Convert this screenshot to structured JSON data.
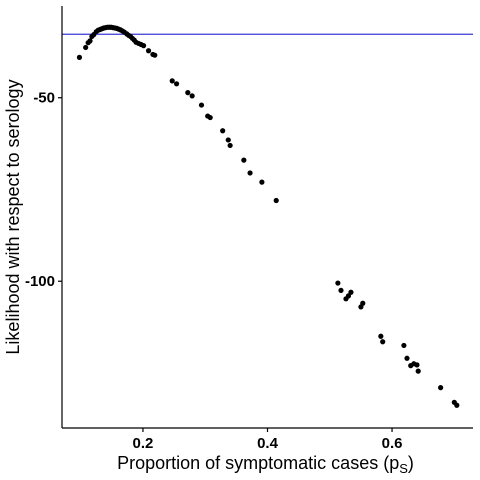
{
  "chart_data": {
    "type": "scatter",
    "xlabel_main": "Proportion of symptomatic cases (p",
    "xlabel_sub": "S",
    "xlabel_close": ")",
    "ylabel": "Likelihood with respect to serology",
    "x_ticks": [
      0.2,
      0.4,
      0.6
    ],
    "x_tick_labels": [
      "0.2",
      "0.4",
      "0.6"
    ],
    "y_ticks": [
      -50,
      -100
    ],
    "y_tick_labels": [
      "-50",
      "-100"
    ],
    "xlim": [
      0.07,
      0.73
    ],
    "ylim": [
      -140,
      -25
    ],
    "grid": false,
    "reference_line": {
      "y": -32.7,
      "color": "#3a3ad6"
    },
    "point_color": "#000000",
    "points": [
      [
        0.098,
        -39.0
      ],
      [
        0.108,
        -36.3
      ],
      [
        0.112,
        -35.0
      ],
      [
        0.115,
        -34.5
      ],
      [
        0.118,
        -33.3
      ],
      [
        0.121,
        -32.8
      ],
      [
        0.125,
        -32.0
      ],
      [
        0.128,
        -31.6
      ],
      [
        0.131,
        -31.4
      ],
      [
        0.134,
        -31.2
      ],
      [
        0.137,
        -31.0
      ],
      [
        0.14,
        -30.9
      ],
      [
        0.143,
        -30.8
      ],
      [
        0.146,
        -30.8
      ],
      [
        0.149,
        -30.8
      ],
      [
        0.152,
        -30.9
      ],
      [
        0.155,
        -31.0
      ],
      [
        0.158,
        -31.1
      ],
      [
        0.161,
        -31.3
      ],
      [
        0.164,
        -31.5
      ],
      [
        0.167,
        -31.8
      ],
      [
        0.17,
        -32.1
      ],
      [
        0.174,
        -32.6
      ],
      [
        0.177,
        -33.0
      ],
      [
        0.18,
        -33.3
      ],
      [
        0.183,
        -33.8
      ],
      [
        0.186,
        -34.3
      ],
      [
        0.189,
        -34.9
      ],
      [
        0.193,
        -35.2
      ],
      [
        0.197,
        -35.5
      ],
      [
        0.201,
        -35.8
      ],
      [
        0.209,
        -37.2
      ],
      [
        0.216,
        -38.2
      ],
      [
        0.219,
        -38.4
      ],
      [
        0.247,
        -45.4
      ],
      [
        0.254,
        -46.2
      ],
      [
        0.272,
        -48.6
      ],
      [
        0.279,
        -49.5
      ],
      [
        0.294,
        -52.0
      ],
      [
        0.304,
        -55.0
      ],
      [
        0.308,
        -55.4
      ],
      [
        0.328,
        -59.0
      ],
      [
        0.337,
        -61.5
      ],
      [
        0.34,
        -63.0
      ],
      [
        0.362,
        -67.0
      ],
      [
        0.372,
        -70.5
      ],
      [
        0.391,
        -73.0
      ],
      [
        0.414,
        -78.0
      ],
      [
        0.513,
        -100.5
      ],
      [
        0.518,
        -102.5
      ],
      [
        0.526,
        -104.8
      ],
      [
        0.53,
        -104.0
      ],
      [
        0.534,
        -103.0
      ],
      [
        0.55,
        -107.0
      ],
      [
        0.553,
        -106.0
      ],
      [
        0.582,
        -115.0
      ],
      [
        0.585,
        -116.5
      ],
      [
        0.619,
        -117.5
      ],
      [
        0.624,
        -121.0
      ],
      [
        0.63,
        -123.0
      ],
      [
        0.635,
        -122.5
      ],
      [
        0.64,
        -122.8
      ],
      [
        0.642,
        -124.5
      ],
      [
        0.678,
        -129.0
      ],
      [
        0.7,
        -133.0
      ],
      [
        0.704,
        -133.8
      ]
    ]
  }
}
